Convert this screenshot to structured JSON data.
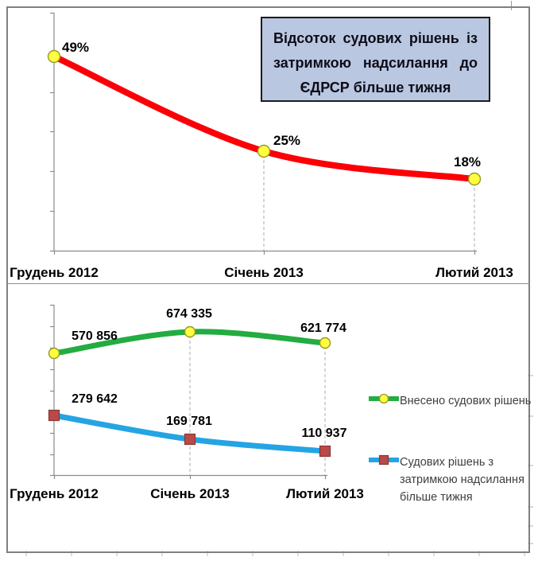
{
  "colors": {
    "red_line": "#FB0007",
    "green_line": "#22AC41",
    "blue_line": "#24A4E4",
    "yellow_marker_fill": "#FFFF3F",
    "yellow_marker_border": "#9A9724",
    "dark_red_marker_fill": "#B94A48",
    "dark_red_marker_border": "#8A3634",
    "axis_gray": "#8C8C8C",
    "dashed_gray": "#ABABAB",
    "title_box_bg": "#BAC7E1",
    "title_box_border": "#1C1C1C",
    "frame_border": "#808080",
    "data_label_text": "#000000",
    "legend_text": "#3F3F3F"
  },
  "chart_data": [
    {
      "type": "line",
      "title": "Відсоток судових рішень із затримкою надсилання до ЄДРСР більше тижня",
      "categories": [
        "Грудень 2012",
        "Січень 2013",
        "Лютий 2013"
      ],
      "series": [
        {
          "values": [
            49,
            25,
            18
          ],
          "labels": [
            "49%",
            "25%",
            "18%"
          ],
          "color_key": "red_line",
          "marker": "circle-yellow"
        }
      ],
      "ylim": [
        0,
        60
      ],
      "grid": "dashed vertical drop-lines at data points",
      "legend_position": "none"
    },
    {
      "type": "line",
      "title": "",
      "categories": [
        "Грудень 2012",
        "Січень 2013",
        "Лютий 2013"
      ],
      "series": [
        {
          "name": "Внесено судових рішень",
          "values": [
            570856,
            674335,
            621774
          ],
          "labels": [
            "570 856",
            "674 335",
            "621 774"
          ],
          "color_key": "green_line",
          "marker": "circle-yellow"
        },
        {
          "name": "Судових рішень з затримкою надсилання більше тижня",
          "values": [
            279642,
            169781,
            110937
          ],
          "labels": [
            "279 642",
            "169 781",
            "110 937"
          ],
          "color_key": "blue_line",
          "marker": "square-darkred"
        }
      ],
      "ylim": [
        0,
        800000
      ],
      "grid": "dashed vertical drop-lines at data points",
      "legend_position": "right"
    }
  ]
}
